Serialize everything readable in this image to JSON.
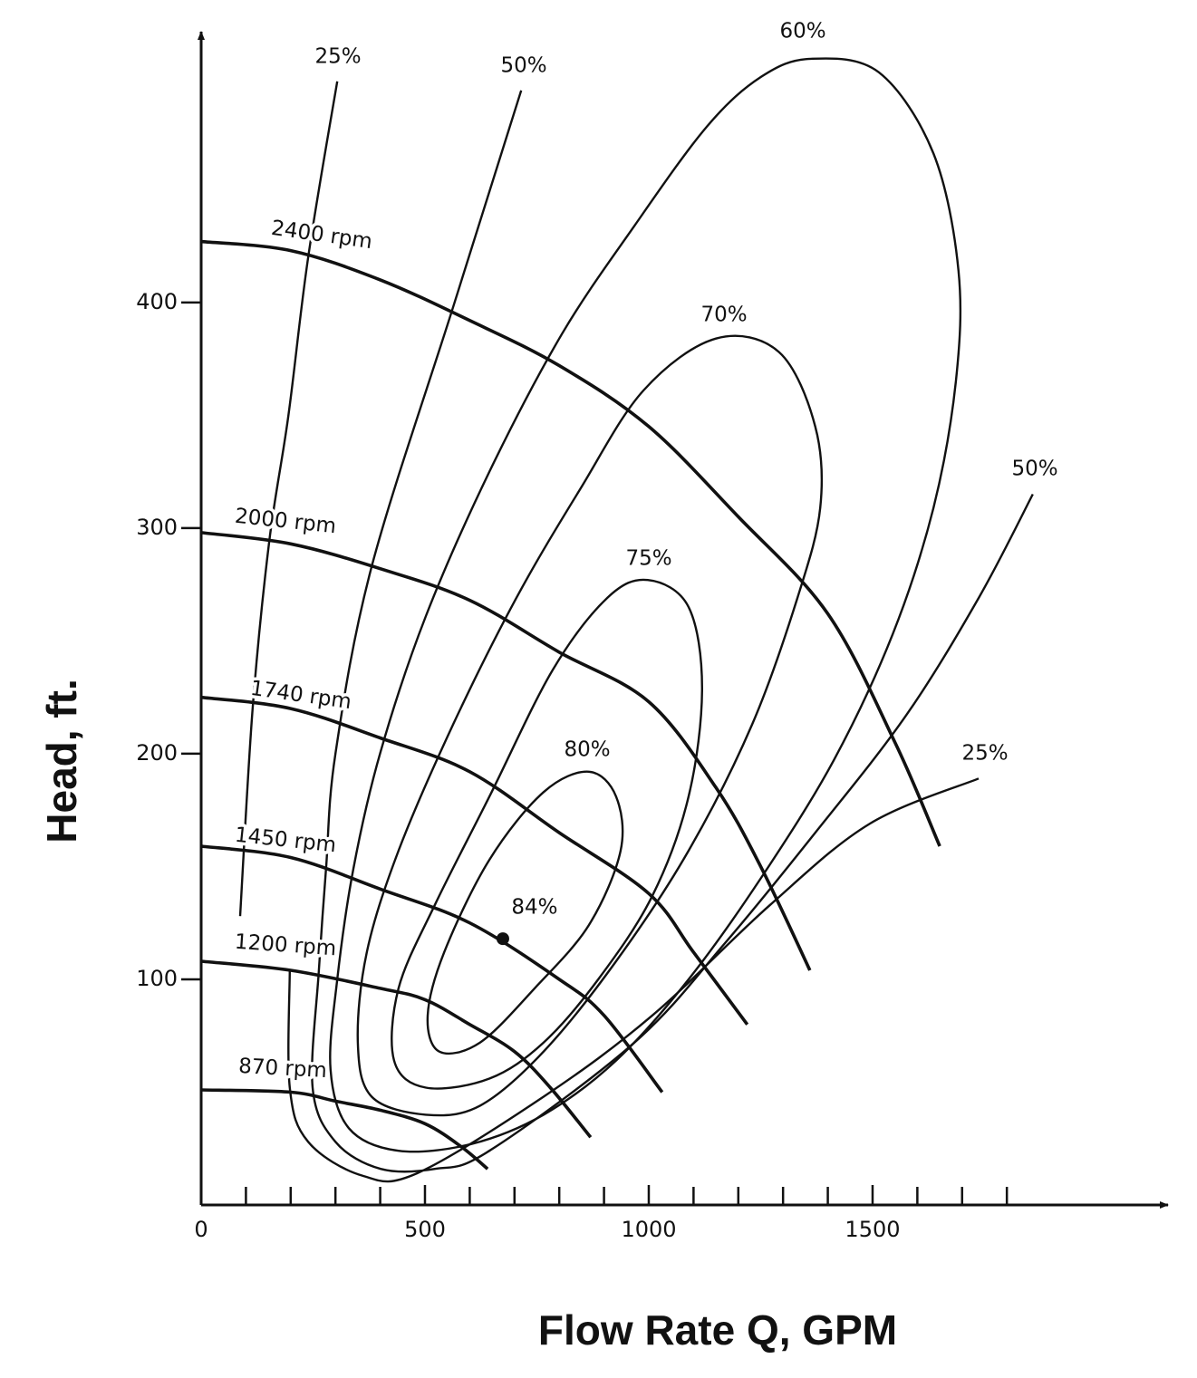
{
  "chart_data": {
    "type": "line",
    "x_label": "Flow Rate Q, GPM",
    "y_label": "Head, ft.",
    "xlim": [
      0,
      2160
    ],
    "ylim": [
      0,
      520
    ],
    "xticks": [
      0,
      500,
      1000,
      1500
    ],
    "xminor_ticks": [
      100,
      200,
      300,
      400,
      600,
      700,
      800,
      900,
      1100,
      1200,
      1300,
      1400,
      1600,
      1700,
      1800
    ],
    "yticks": [
      100,
      200,
      300,
      400
    ],
    "grid": false,
    "color": "#111111",
    "speed_curves": [
      {
        "name": "2400 rpm",
        "x": [
          0,
          200,
          400,
          600,
          800,
          1000,
          1200,
          1400,
          1550,
          1650
        ],
        "values": [
          427,
          423,
          410,
          392,
          372,
          345,
          305,
          262,
          205,
          159
        ]
      },
      {
        "name": "2000 rpm",
        "x": [
          0,
          200,
          400,
          600,
          800,
          1000,
          1150,
          1250,
          1360
        ],
        "values": [
          298,
          293,
          282,
          268,
          245,
          223,
          185,
          150,
          104
        ]
      },
      {
        "name": "1740 rpm",
        "x": [
          0,
          200,
          400,
          600,
          800,
          1000,
          1100,
          1220
        ],
        "values": [
          225,
          220,
          207,
          192,
          165,
          138,
          112,
          80
        ]
      },
      {
        "name": "1450 rpm",
        "x": [
          0,
          200,
          400,
          600,
          800,
          900,
          1030
        ],
        "values": [
          159,
          154,
          140,
          125,
          100,
          84,
          50
        ]
      },
      {
        "name": "1200 rpm",
        "x": [
          0,
          200,
          400,
          500,
          600,
          700,
          780,
          870
        ],
        "values": [
          108,
          104,
          96,
          91,
          80,
          68,
          52,
          30
        ]
      },
      {
        "name": "870 rpm",
        "x": [
          0,
          200,
          300,
          400,
          500,
          580,
          640
        ],
        "values": [
          51,
          50,
          46,
          42,
          36,
          26,
          16
        ]
      }
    ],
    "efficiency_curves": [
      {
        "name": "25%",
        "closed": false,
        "x": [
          304,
          239,
          195,
          152,
          115,
          87,
          null,
          198,
          198,
          239,
          360,
          482,
          765,
          1008,
          1271,
          1494,
          1737
        ],
        "values": [
          498,
          420,
          350,
          294,
          220,
          128,
          null,
          104,
          52,
          28,
          13,
          14,
          48,
          84,
          133,
          169,
          189
        ]
      },
      {
        "name": "50%",
        "closed": false,
        "x": [
          715,
          563,
          381,
          300,
          279,
          263,
          249,
          300,
          401,
          522,
          644,
          968,
          1170,
          1372,
          1575,
          1737,
          1858
        ],
        "values": [
          494,
          398,
          283,
          200,
          149,
          104,
          52,
          28,
          16,
          16,
          24,
          72,
          116,
          165,
          217,
          269,
          315
        ]
      },
      {
        "name": "60%",
        "closed": true,
        "x": [
          1362,
          1514,
          1636,
          1692,
          1686,
          1636,
          1545,
          1413,
          1251,
          1089,
          927,
          765,
          603,
          441,
          330,
          289,
          304,
          340,
          401,
          502,
          644,
          806,
          968,
          1130,
          1251
        ],
        "values": [
          508,
          502,
          466,
          414,
          365,
          309,
          253,
          197,
          145,
          100,
          64,
          40,
          27,
          24,
          34,
          60,
          100,
          149,
          201,
          261,
          325,
          386,
          434,
          478,
          500
        ]
      },
      {
        "name": "70%",
        "closed": true,
        "x": [
          1150,
          1291,
          1372,
          1383,
          1332,
          1231,
          1089,
          927,
          765,
          623,
          502,
          381,
          350,
          370,
          441,
          563,
          704,
          846,
          988
        ],
        "values": [
          384,
          378,
          345,
          309,
          269,
          213,
          157,
          108,
          68,
          44,
          40,
          48,
          72,
          112,
          157,
          213,
          269,
          317,
          361
        ]
      },
      {
        "name": "75%",
        "closed": true,
        "x": [
          998,
          1089,
          1119,
          1089,
          1008,
          887,
          765,
          644,
          502,
          431,
          441,
          522,
          644,
          785,
          907
        ],
        "values": [
          277,
          265,
          229,
          181,
          137,
          100,
          72,
          56,
          52,
          64,
          96,
          133,
          181,
          237,
          269
        ]
      },
      {
        "name": "80%",
        "closed": true,
        "x": [
          866,
          927,
          937,
          866,
          745,
          623,
          532,
          506,
          543,
          644,
          765
        ],
        "values": [
          192,
          181,
          157,
          124,
          96,
          72,
          68,
          84,
          112,
          153,
          183
        ]
      }
    ],
    "points": [
      {
        "name": "84%",
        "x": 674,
        "y": 118
      }
    ]
  }
}
